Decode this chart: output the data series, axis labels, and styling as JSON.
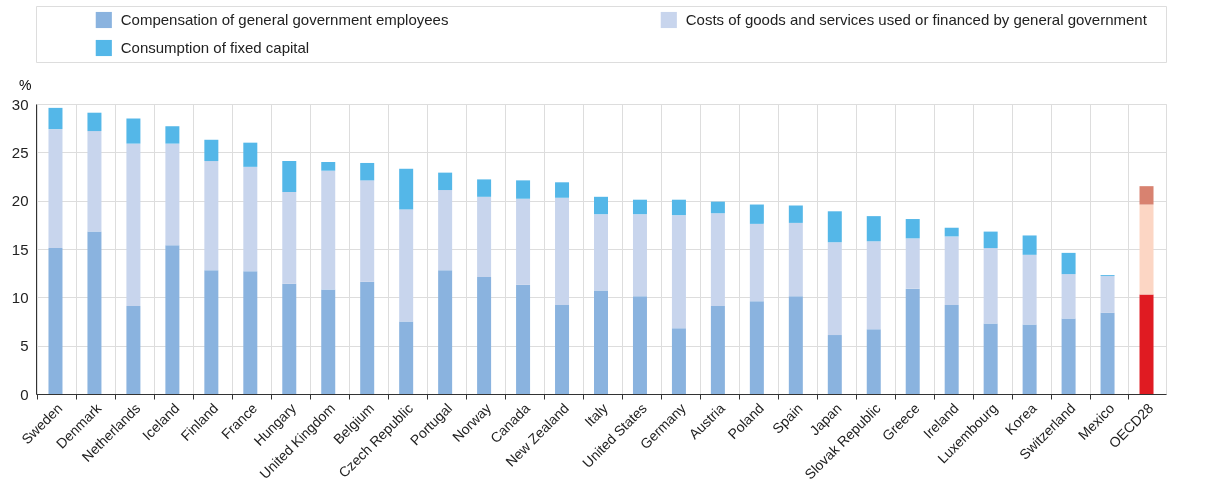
{
  "chart_data": {
    "type": "bar",
    "stacked": true,
    "ylabel": "%",
    "legend": "top",
    "grid": true,
    "categories": [
      "Sweden",
      "Denmark",
      "Netherlands",
      "Iceland",
      "Finland",
      "France",
      "Hungary",
      "United Kingdom",
      "Belgium",
      "Czech Republic",
      "Portugal",
      "Norway",
      "Canada",
      "New Zealand",
      "Italy",
      "United States",
      "Germany",
      "Austria",
      "Poland",
      "Spain",
      "Japan",
      "Slovak Republic",
      "Greece",
      "Ireland",
      "Luxembourg",
      "Korea",
      "Switzerland",
      "Mexico",
      "OECD28"
    ],
    "ylim": [
      0,
      30
    ],
    "yticks": [
      0,
      5,
      10,
      15,
      20,
      25,
      30
    ],
    "series": [
      {
        "name": "Compensation of general government employees",
        "color": "#8ab3df",
        "colors": [
          "#8ab3df",
          "#8ab3df",
          "#8ab3df",
          "#8ab3df",
          "#8ab3df",
          "#8ab3df",
          "#8ab3df",
          "#8ab3df",
          "#8ab3df",
          "#8ab3df",
          "#8ab3df",
          "#8ab3df",
          "#8ab3df",
          "#8ab3df",
          "#8ab3df",
          "#8ab3df",
          "#8ab3df",
          "#8ab3df",
          "#8ab3df",
          "#8ab3df",
          "#8ab3df",
          "#8ab3df",
          "#8ab3df",
          "#8ab3df",
          "#8ab3df",
          "#8ab3df",
          "#8ab3df",
          "#8ab3df",
          "#e01b22"
        ],
        "values": [
          15.1,
          16.8,
          9.1,
          15.4,
          12.8,
          12.7,
          11.4,
          10.8,
          11.6,
          7.5,
          12.8,
          12.1,
          11.3,
          9.2,
          10.7,
          10.1,
          6.8,
          9.1,
          9.6,
          10.1,
          6.1,
          6.7,
          10.9,
          9.2,
          7.3,
          7.2,
          7.8,
          8.4,
          10.3
        ]
      },
      {
        "name": "Costs of goods and services used or financed by general government",
        "color": "#c8d5ed",
        "colors": [
          "#c8d5ed",
          "#c8d5ed",
          "#c8d5ed",
          "#c8d5ed",
          "#c8d5ed",
          "#c8d5ed",
          "#c8d5ed",
          "#c8d5ed",
          "#c8d5ed",
          "#c8d5ed",
          "#c8d5ed",
          "#c8d5ed",
          "#c8d5ed",
          "#c8d5ed",
          "#c8d5ed",
          "#c8d5ed",
          "#c8d5ed",
          "#c8d5ed",
          "#c8d5ed",
          "#c8d5ed",
          "#c8d5ed",
          "#c8d5ed",
          "#c8d5ed",
          "#c8d5ed",
          "#c8d5ed",
          "#c8d5ed",
          "#c8d5ed",
          "#c8d5ed",
          "#fcd6c4"
        ],
        "values": [
          12.3,
          10.4,
          16.8,
          10.5,
          11.3,
          10.8,
          9.5,
          12.3,
          10.5,
          11.6,
          8.3,
          8.3,
          8.9,
          11.1,
          7.9,
          8.5,
          11.7,
          9.6,
          8.0,
          7.6,
          9.6,
          9.1,
          5.2,
          7.1,
          7.8,
          7.2,
          4.6,
          3.8,
          9.3
        ]
      },
      {
        "name": "Consumption of fixed capital",
        "color": "#54b7e8",
        "colors": [
          "#54b7e8",
          "#54b7e8",
          "#54b7e8",
          "#54b7e8",
          "#54b7e8",
          "#54b7e8",
          "#54b7e8",
          "#54b7e8",
          "#54b7e8",
          "#54b7e8",
          "#54b7e8",
          "#54b7e8",
          "#54b7e8",
          "#54b7e8",
          "#54b7e8",
          "#54b7e8",
          "#54b7e8",
          "#54b7e8",
          "#54b7e8",
          "#54b7e8",
          "#54b7e8",
          "#54b7e8",
          "#54b7e8",
          "#54b7e8",
          "#54b7e8",
          "#54b7e8",
          "#54b7e8",
          "#54b7e8",
          "#d88270"
        ],
        "values": [
          2.2,
          1.9,
          2.6,
          1.8,
          2.2,
          2.5,
          3.2,
          0.9,
          1.8,
          4.2,
          1.8,
          1.8,
          1.9,
          1.6,
          1.8,
          1.5,
          1.6,
          1.2,
          2.0,
          1.8,
          3.2,
          2.6,
          2.0,
          0.9,
          1.7,
          2.0,
          2.2,
          0.1,
          1.9
        ]
      }
    ]
  }
}
